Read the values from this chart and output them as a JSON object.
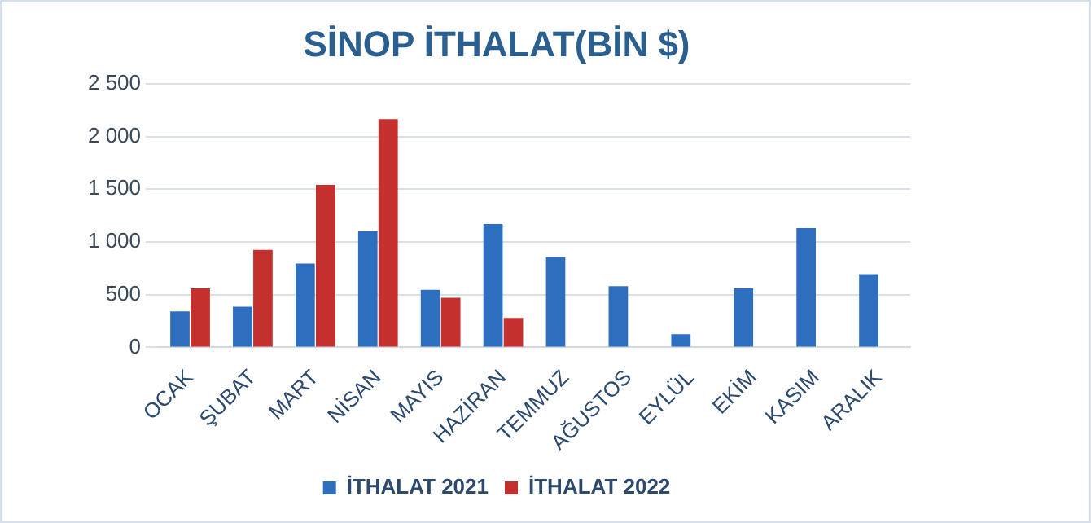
{
  "chart_data": {
    "type": "bar",
    "title": "SİNOP İTHALAT(BİN $)",
    "categories": [
      "OCAK",
      "ŞUBAT",
      "MART",
      "NİSAN",
      "MAYIS",
      "HAZİRAN",
      "TEMMUZ",
      "AĞUSTOS",
      "EYLÜL",
      "EKİM",
      "KASIM",
      "ARALIK"
    ],
    "series": [
      {
        "name": "İTHALAT 2021",
        "color": "#2e6ebf",
        "values": [
          340,
          385,
          795,
          1100,
          545,
          1170,
          855,
          580,
          125,
          560,
          1130,
          695
        ]
      },
      {
        "name": "İTHALAT 2022",
        "color": "#c4302e",
        "values": [
          560,
          925,
          1540,
          2165,
          470,
          280,
          null,
          null,
          null,
          null,
          null,
          null
        ]
      }
    ],
    "ylim": [
      0,
      2500
    ],
    "yticks": [
      0,
      500,
      {
        "value": 1000,
        "label": "1 000"
      },
      {
        "value": 1500,
        "label": "1 500"
      },
      {
        "value": 2000,
        "label": "2 000"
      },
      {
        "value": 2500,
        "label": "2 500"
      }
    ],
    "grid": "y",
    "legend": "bottom"
  }
}
